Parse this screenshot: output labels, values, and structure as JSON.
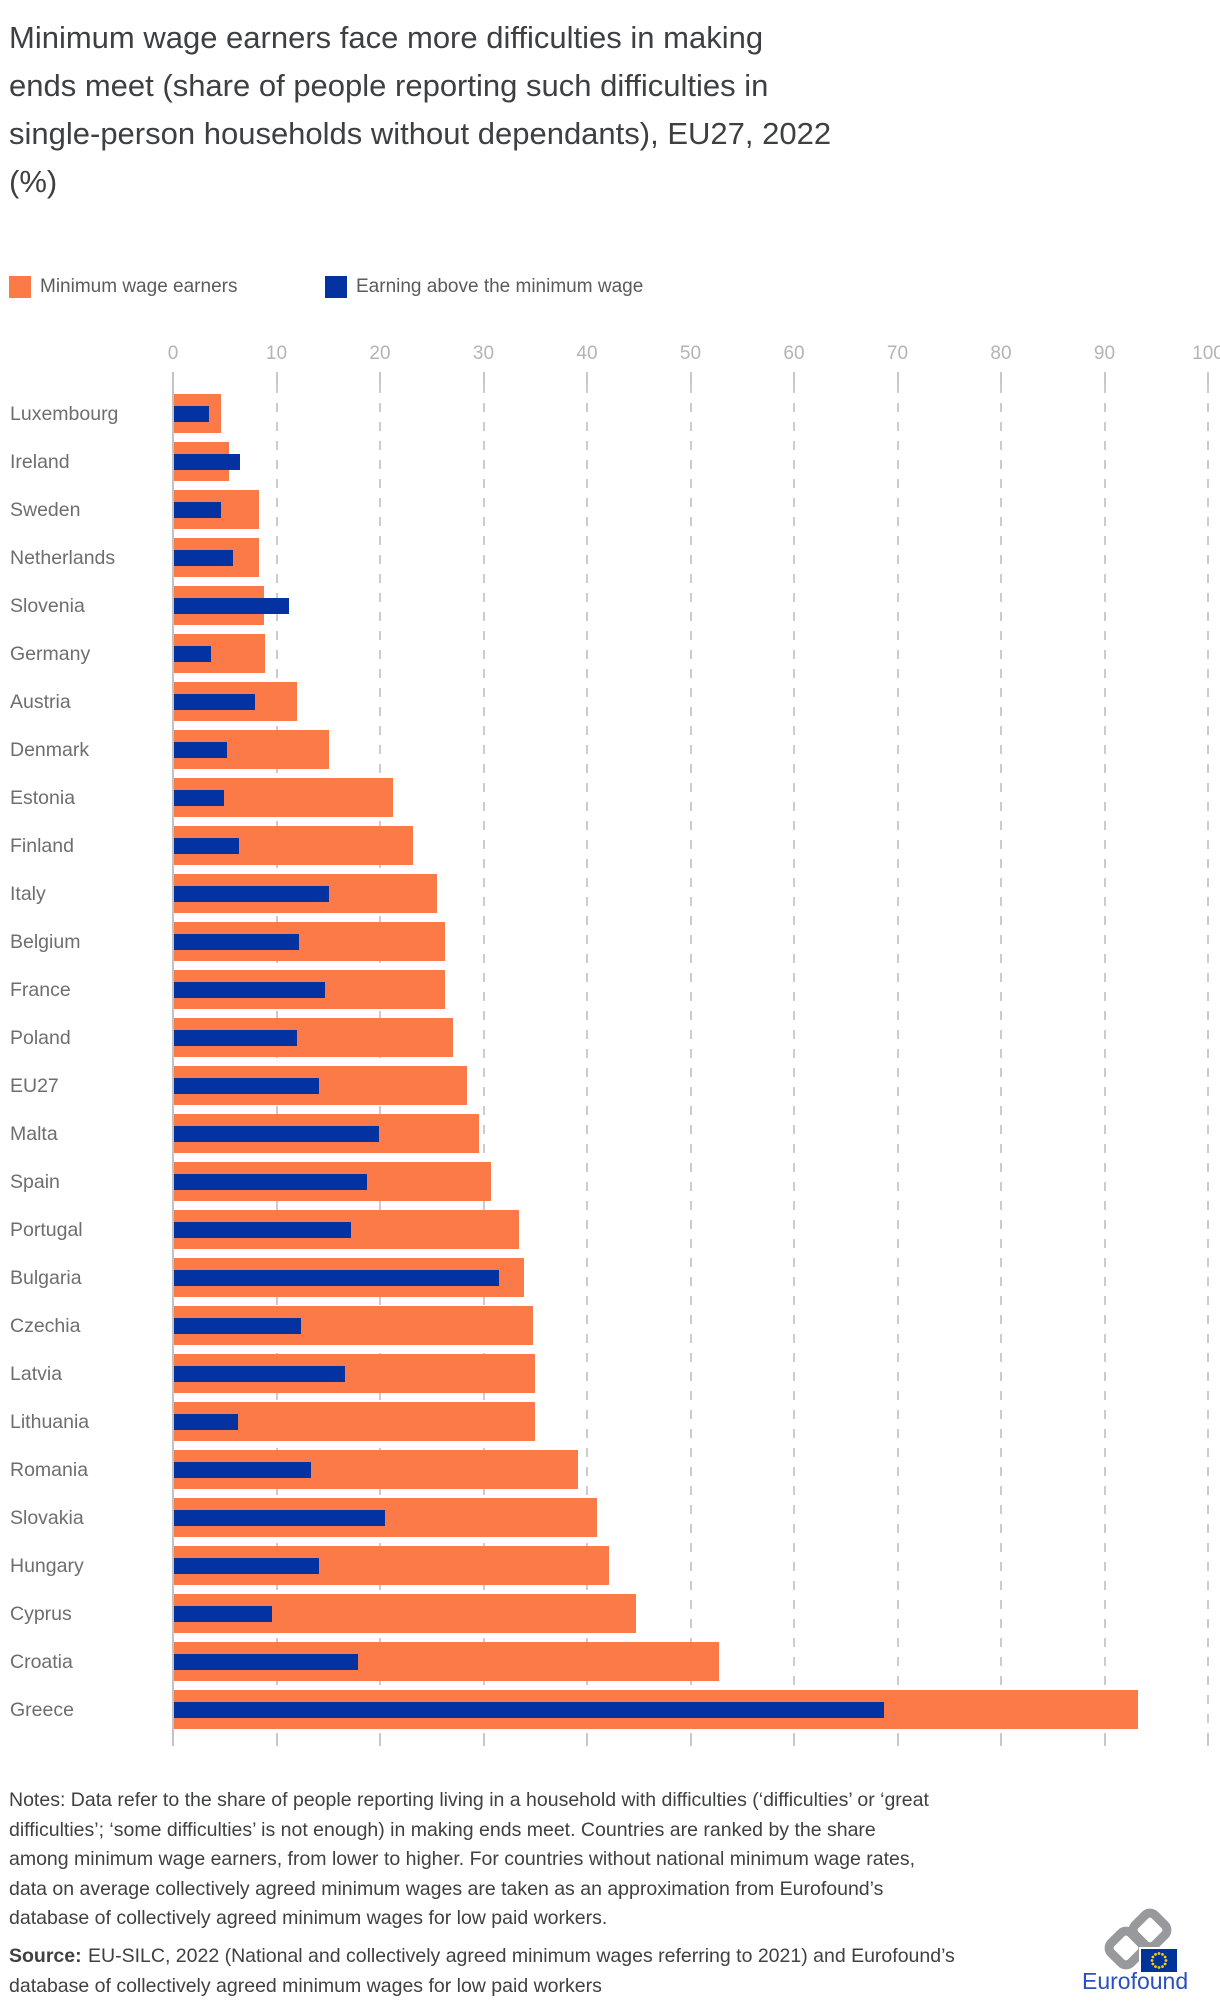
{
  "title_lines": [
    "Minimum wage earners face more difficulties in making",
    "ends meet (share of people reporting such difficulties in",
    "single-person households without dependants), EU27, 2022",
    "(%)"
  ],
  "legend": {
    "items": [
      {
        "label": "Minimum wage earners",
        "color": "#FB7A48"
      },
      {
        "label": "Earning above the minimum wage",
        "color": "#0532A1"
      }
    ]
  },
  "chart_data": {
    "type": "bar",
    "orientation": "horizontal",
    "title": "Minimum wage earners face more difficulties in making ends meet (share of people reporting such difficulties in single-person households without dependants), EU27, 2022 (%)",
    "categories": [
      "Luxembourg",
      "Ireland",
      "Sweden",
      "Netherlands",
      "Slovenia",
      "Germany",
      "Austria",
      "Denmark",
      "Estonia",
      "Finland",
      "Italy",
      "Belgium",
      "France",
      "Poland",
      "EU27",
      "Malta",
      "Spain",
      "Portugal",
      "Bulgaria",
      "Czechia",
      "Latvia",
      "Lithuania",
      "Romania",
      "Slovakia",
      "Hungary",
      "Cyprus",
      "Croatia",
      "Greece"
    ],
    "series": [
      {
        "name": "Minimum wage earners",
        "color": "#FB7A48",
        "values": [
          4.5,
          5.3,
          8.2,
          8.2,
          8.7,
          8.8,
          11.9,
          15.0,
          21.2,
          23.1,
          25.4,
          26.2,
          26.2,
          27.0,
          28.3,
          29.5,
          30.6,
          33.3,
          33.8,
          34.7,
          34.9,
          34.9,
          39.0,
          40.9,
          42.0,
          44.6,
          52.7,
          93.1
        ]
      },
      {
        "name": "Earning above the minimum wage",
        "color": "#0532A1",
        "values": [
          3.4,
          6.4,
          4.5,
          5.7,
          11.1,
          3.6,
          7.8,
          5.1,
          4.8,
          6.3,
          15.0,
          12.1,
          14.6,
          11.9,
          14.0,
          19.8,
          18.6,
          17.1,
          31.4,
          12.3,
          16.5,
          6.2,
          13.2,
          20.4,
          14.0,
          9.5,
          17.8,
          68.6
        ]
      }
    ],
    "xlabel": "",
    "ylabel": "",
    "x_ticks": [
      0,
      10,
      20,
      30,
      40,
      50,
      60,
      70,
      80,
      90,
      100
    ],
    "xlim": [
      0,
      100
    ],
    "grid": "vertical-dashed",
    "legend_position": "top-left",
    "ranking": "Countries ranked by share among minimum wage earners, ascending"
  },
  "notes": {
    "lines": [
      "Notes: Data refer to the share of people reporting living in a household with difficulties (‘difficulties’ or ‘great",
      "difficulties’; ‘some difficulties’ is not enough) in making ends meet. Countries are ranked by the share",
      "among minimum wage earners, from lower to higher. For countries without national minimum wage rates,",
      "data on average collectively agreed minimum wages are taken as an approximation from Eurofound’s",
      "database of collectively agreed minimum wages for low paid workers."
    ]
  },
  "source": {
    "label": "Source:",
    "lines": [
      "EU-SILC, 2022 (National and collectively agreed minimum wages referring to 2021) and Eurofound’s",
      "database of collectively agreed minimum wages for low paid workers"
    ]
  },
  "logo": {
    "text": "Eurofound"
  },
  "colors": {
    "orange": "#FB7A48",
    "navy": "#0532A1",
    "grid": "#CBCCCD",
    "axis_line": "#C2C3C5",
    "axis_text": "#B3B4B6",
    "label_text": "#6D6E70",
    "title_text": "#3E3F41",
    "notes_text": "#3F4041",
    "logo_text_blue": "#2B4EC5",
    "flag_blue": "#003399",
    "star_yellow": "#FFCC00",
    "link_gray": "#97999C"
  }
}
